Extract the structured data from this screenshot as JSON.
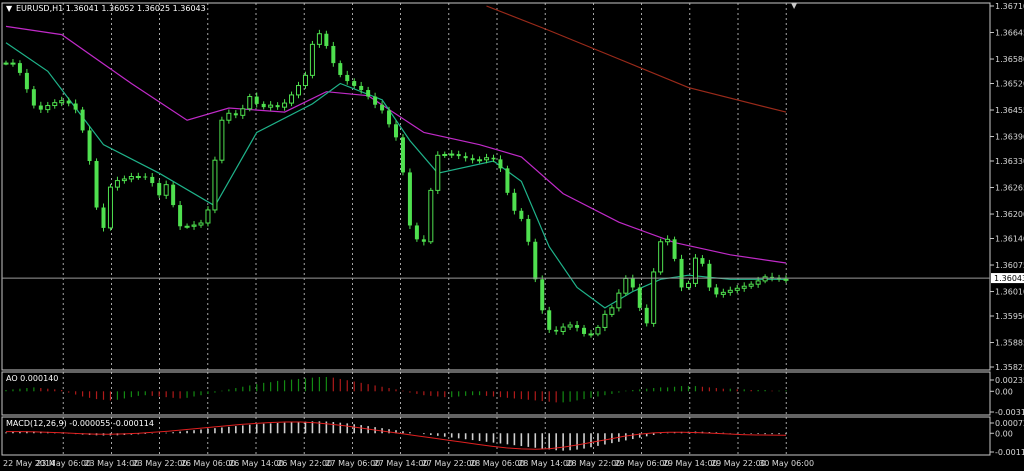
{
  "window": {
    "symbol": "EURUSD,H1",
    "ohlc": "1.36041 1.36052 1.36025 1.36043",
    "title_text": "EURUSD,H1  1.36041 1.36052 1.36025 1.36043"
  },
  "colors": {
    "background": "#000000",
    "grid": "#c8c8c8",
    "candle": "#4fe04f",
    "ma_fast": "#1fb38a",
    "ma_mid": "#c02ac8",
    "ma_slow": "#9a2a1a",
    "ao_up": "#138a13",
    "ao_down": "#b01a1a",
    "macd_hist": "#d0d0d0",
    "macd_signal": "#e02020"
  },
  "chart_data": [
    {
      "type": "candlestick",
      "name": "main",
      "title": "EURUSD,H1 1.36041 1.36052 1.36025 1.36043",
      "ylim": [
        1.35825,
        1.3671
      ],
      "y_ticks": [
        "1.36710",
        "1.36645",
        "1.36580",
        "1.36520",
        "1.36455",
        "1.36390",
        "1.36330",
        "1.36265",
        "1.36200",
        "1.36140",
        "1.36075",
        "1.36043",
        "1.36010",
        "1.35950",
        "1.35885",
        "1.35825"
      ],
      "current_price": 1.36043,
      "current_price_label": "1.36043",
      "x_tick_labels": [
        "22 May 2014",
        "23 May 06:00",
        "23 May 14:00",
        "23 May 22:00",
        "26 May 06:00",
        "26 May 14:00",
        "26 May 22:00",
        "27 May 06:00",
        "27 May 14:00",
        "27 May 22:00",
        "28 May 06:00",
        "28 May 14:00",
        "28 May 22:00",
        "29 May 06:00",
        "29 May 14:00",
        "29 May 22:00",
        "30 May 06:00"
      ],
      "close_path": [
        [
          0,
          1.3657
        ],
        [
          2,
          1.3657
        ],
        [
          4,
          1.3649
        ],
        [
          5,
          1.3645
        ],
        [
          7,
          1.3647
        ],
        [
          9,
          1.3648
        ],
        [
          11,
          1.3645
        ],
        [
          13,
          1.363
        ],
        [
          14,
          1.3616
        ],
        [
          15,
          1.3617
        ],
        [
          16,
          1.3633
        ],
        [
          17,
          1.3625
        ],
        [
          18,
          1.3631
        ],
        [
          19,
          1.3628
        ],
        [
          20,
          1.363
        ],
        [
          22,
          1.3627
        ],
        [
          23,
          1.3623
        ],
        [
          24,
          1.363
        ],
        [
          25,
          1.3617
        ],
        [
          27,
          1.3617
        ],
        [
          29,
          1.3618
        ],
        [
          30,
          1.3623
        ],
        [
          31,
          1.364
        ],
        [
          32,
          1.3645
        ],
        [
          34,
          1.3644
        ],
        [
          36,
          1.365
        ],
        [
          37,
          1.3645
        ],
        [
          38,
          1.3647
        ],
        [
          40,
          1.3646
        ],
        [
          42,
          1.365
        ],
        [
          44,
          1.3655
        ],
        [
          45,
          1.3666
        ],
        [
          47,
          1.366
        ],
        [
          48,
          1.3655
        ],
        [
          50,
          1.3652
        ],
        [
          52,
          1.365
        ],
        [
          54,
          1.3646
        ],
        [
          55,
          1.3645
        ],
        [
          56,
          1.364
        ],
        [
          57,
          1.3638
        ],
        [
          58,
          1.3625
        ],
        [
          59,
          1.3612
        ],
        [
          60,
          1.3615
        ],
        [
          61,
          1.3612
        ],
        [
          62,
          1.3635
        ],
        [
          63,
          1.3634
        ],
        [
          64,
          1.3635
        ],
        [
          66,
          1.3634
        ],
        [
          68,
          1.3633
        ],
        [
          70,
          1.3634
        ],
        [
          71,
          1.3633
        ],
        [
          72,
          1.363
        ],
        [
          73,
          1.3622
        ],
        [
          74,
          1.362
        ],
        [
          75,
          1.3618
        ],
        [
          76,
          1.361
        ],
        [
          77,
          1.36
        ],
        [
          78,
          1.3594
        ],
        [
          79,
          1.359
        ],
        [
          80,
          1.3592
        ],
        [
          82,
          1.3593
        ],
        [
          84,
          1.359
        ],
        [
          85,
          1.3591
        ],
        [
          86,
          1.3593
        ],
        [
          87,
          1.3597
        ],
        [
          88,
          1.3597
        ],
        [
          89,
          1.3603
        ],
        [
          90,
          1.3605
        ],
        [
          91,
          1.36
        ],
        [
          92,
          1.3595
        ],
        [
          93,
          1.3592
        ],
        [
          94,
          1.3615
        ],
        [
          95,
          1.3612
        ],
        [
          96,
          1.3615
        ],
        [
          97,
          1.3605
        ],
        [
          98,
          1.36
        ],
        [
          99,
          1.3605
        ],
        [
          100,
          1.3612
        ],
        [
          101,
          1.3605
        ],
        [
          102,
          1.36
        ],
        [
          104,
          1.3601
        ],
        [
          106,
          1.3602
        ],
        [
          108,
          1.3603
        ],
        [
          110,
          1.3605
        ],
        [
          111,
          1.3604
        ],
        [
          112,
          1.3604
        ]
      ],
      "ma_fast": [
        [
          0,
          1.3662
        ],
        [
          6,
          1.3655
        ],
        [
          14,
          1.3637
        ],
        [
          22,
          1.363
        ],
        [
          30,
          1.3622
        ],
        [
          36,
          1.364
        ],
        [
          44,
          1.3647
        ],
        [
          48,
          1.3652
        ],
        [
          54,
          1.3648
        ],
        [
          58,
          1.3638
        ],
        [
          62,
          1.363
        ],
        [
          70,
          1.3633
        ],
        [
          74,
          1.3628
        ],
        [
          78,
          1.3612
        ],
        [
          82,
          1.3602
        ],
        [
          86,
          1.3597
        ],
        [
          90,
          1.3601
        ],
        [
          94,
          1.3604
        ],
        [
          98,
          1.3605
        ],
        [
          104,
          1.3604
        ],
        [
          112,
          1.3604
        ]
      ],
      "ma_mid": [
        [
          0,
          1.3666
        ],
        [
          8,
          1.3664
        ],
        [
          18,
          1.3652
        ],
        [
          26,
          1.3643
        ],
        [
          32,
          1.3646
        ],
        [
          40,
          1.3645
        ],
        [
          46,
          1.365
        ],
        [
          52,
          1.3649
        ],
        [
          60,
          1.364
        ],
        [
          68,
          1.3637
        ],
        [
          74,
          1.3634
        ],
        [
          80,
          1.3625
        ],
        [
          88,
          1.3618
        ],
        [
          96,
          1.3613
        ],
        [
          104,
          1.361
        ],
        [
          112,
          1.3608
        ]
      ],
      "ma_slow": [
        [
          69,
          1.3671
        ],
        [
          78,
          1.3665
        ],
        [
          88,
          1.3658
        ],
        [
          98,
          1.3651
        ],
        [
          112,
          1.3645
        ]
      ]
    },
    {
      "type": "bar",
      "name": "AO",
      "title": "AO 0.000140",
      "ylim": [
        -0.00318,
        0.00235
      ],
      "y_ticks": [
        "0.002359",
        "0.00",
        "-0.00318"
      ],
      "values": [
        0.0002,
        0.0003,
        0.0004,
        0.0005,
        0.0006,
        0.0005,
        0.0004,
        0.0003,
        0.0002,
        -0.0002,
        -0.0005,
        -0.0008,
        -0.001,
        -0.0012,
        -0.0013,
        -0.0014,
        -0.0013,
        -0.0011,
        -0.0009,
        -0.0007,
        -0.0006,
        -0.0007,
        -0.0008,
        -0.0009,
        -0.001,
        -0.0011,
        -0.001,
        -0.0008,
        -0.0006,
        -0.0004,
        -0.0002,
        0.0001,
        0.0003,
        0.0005,
        0.0007,
        0.0009,
        0.0011,
        0.0013,
        0.0014,
        0.0016,
        0.0017,
        0.0018,
        0.0019,
        0.002,
        0.0021,
        0.0022,
        0.0022,
        0.0021,
        0.0019,
        0.0017,
        0.0015,
        0.0013,
        0.0011,
        0.0009,
        0.0007,
        0.0005,
        0.0003,
        0.0001,
        -0.0002,
        -0.0004,
        -0.0006,
        -0.0007,
        -0.0008,
        -0.0009,
        -0.0009,
        -0.0008,
        -0.0007,
        -0.0006,
        -0.0006,
        -0.0007,
        -0.0008,
        -0.0009,
        -0.001,
        -0.0011,
        -0.0012,
        -0.0013,
        -0.0014,
        -0.0015,
        -0.0016,
        -0.0017,
        -0.0017,
        -0.0016,
        -0.0014,
        -0.0012,
        -0.001,
        -0.0008,
        -0.0006,
        -0.0004,
        -0.0002,
        0.0001,
        0.0002,
        0.0003,
        0.0004,
        0.0005,
        0.0006,
        0.0006,
        0.0007,
        0.0008,
        0.0008,
        0.0008,
        0.0007,
        0.0006,
        0.0005,
        0.0004,
        0.0004,
        0.0003,
        0.0003,
        0.0002,
        0.0002,
        0.0002,
        0.0001,
        0.0001,
        0.00014
      ]
    },
    {
      "type": "bar",
      "name": "MACD",
      "title": "MACD(12,26,9) -0.000055 -0.000114",
      "ylim": [
        -0.0011,
        0.00072
      ],
      "y_ticks": [
        "0.000727",
        "0.00",
        "-0.00110"
      ],
      "values": [
        5e-05,
        8e-05,
        0.0001,
        0.00012,
        0.00011,
        0.0001,
        8e-05,
        5e-05,
        2e-05,
        -2e-05,
        -5e-05,
        -8e-05,
        -0.0001,
        -0.00012,
        -0.00013,
        -0.00013,
        -0.00012,
        -0.0001,
        -8e-05,
        -6e-05,
        -4e-05,
        -2e-05,
        0.0,
        3e-05,
        6e-05,
        0.0001,
        0.00014,
        0.00018,
        0.00022,
        0.00026,
        0.0003,
        0.00034,
        0.00038,
        0.00042,
        0.00046,
        0.0005,
        0.00053,
        0.00056,
        0.00058,
        0.0006,
        0.00062,
        0.00064,
        0.00066,
        0.00068,
        0.0007,
        0.0007,
        0.00069,
        0.00066,
        0.00062,
        0.00058,
        0.00053,
        0.00048,
        0.00042,
        0.00036,
        0.0003,
        0.00024,
        0.00018,
        0.00012,
        6e-05,
        0.0,
        -5e-05,
        -0.0001,
        -0.00015,
        -0.0002,
        -0.00025,
        -0.0003,
        -0.00035,
        -0.0004,
        -0.00045,
        -0.0005,
        -0.00055,
        -0.0006,
        -0.00065,
        -0.0007,
        -0.00075,
        -0.0008,
        -0.00085,
        -0.0009,
        -0.00095,
        -0.001,
        -0.00102,
        -0.001,
        -0.00096,
        -0.0009,
        -0.00082,
        -0.00074,
        -0.00066,
        -0.00058,
        -0.0005,
        -0.00042,
        -0.00034,
        -0.00026,
        -0.00018,
        -0.0001,
        -3e-05,
        3e-05,
        6e-05,
        8e-05,
        9e-05,
        0.0001,
        9e-05,
        7e-05,
        5e-05,
        3e-05,
        1e-05,
        -1e-05,
        -2e-05,
        -3e-05,
        -4e-05,
        -5e-05,
        -5e-05,
        -5e-05,
        -5.5e-05
      ],
      "signal": [
        0.0001,
        0.0001,
        8e-05,
        5e-05,
        2e-05,
        -2e-05,
        -5e-05,
        -6e-05,
        -4e-05,
        0.0,
        6e-05,
        0.00012,
        0.0002,
        0.00028,
        0.00036,
        0.00044,
        0.00052,
        0.00058,
        0.00063,
        0.00066,
        0.00066,
        0.00062,
        0.00054,
        0.00044,
        0.00032,
        0.0002,
        8e-05,
        -4e-05,
        -0.00016,
        -0.00028,
        -0.0004,
        -0.00052,
        -0.00064,
        -0.00076,
        -0.00086,
        -0.00092,
        -0.00094,
        -0.0009,
        -0.0008,
        -0.00066,
        -0.0005,
        -0.00034,
        -0.00018,
        -6e-05,
        2e-05,
        6e-05,
        6e-05,
        4e-05,
        0.0,
        -4e-05,
        -8e-05,
        -0.0001,
        -0.00011,
        -0.000114
      ]
    }
  ]
}
